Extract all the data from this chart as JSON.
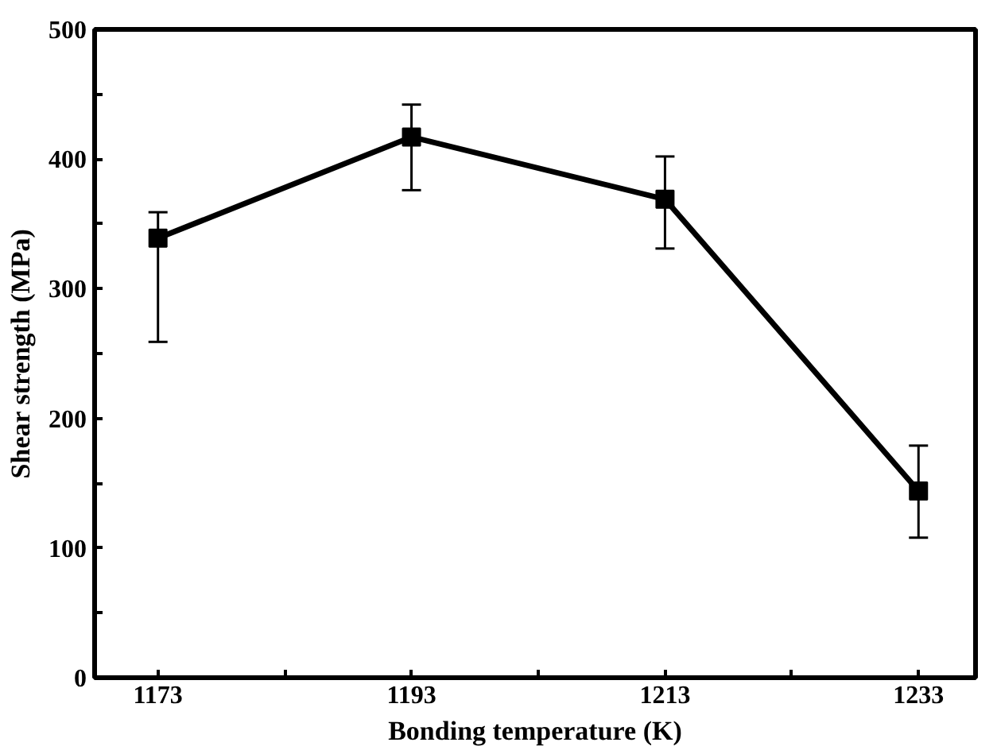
{
  "chart_data": {
    "type": "line",
    "xlabel": "Bonding temperature (K)",
    "ylabel": "Shear strength (MPa)",
    "x": [
      1173,
      1193,
      1213,
      1233
    ],
    "series": [
      {
        "color": "#000000",
        "values": [
          339,
          417,
          369,
          144
        ],
        "errors": [
          [
            259,
            359
          ],
          [
            376,
            442
          ],
          [
            331,
            402
          ],
          [
            108,
            179
          ]
        ]
      }
    ],
    "xlim": [
      1168,
      1237.5
    ],
    "ylim": [
      0,
      500
    ],
    "xticks": [
      1173,
      {
        "value": 1183,
        "label": null
      },
      1193,
      {
        "value": 1203,
        "label": null
      },
      1213,
      {
        "value": 1223,
        "label": null
      },
      1233
    ],
    "yticks": [
      0,
      {
        "value": 50,
        "label": null
      },
      100,
      {
        "value": 150,
        "label": null
      },
      200,
      {
        "value": 250,
        "label": null
      },
      300,
      {
        "value": 350,
        "label": null
      },
      400,
      {
        "value": 450,
        "label": null
      },
      500
    ],
    "marker": "square",
    "line_style": "solid"
  }
}
